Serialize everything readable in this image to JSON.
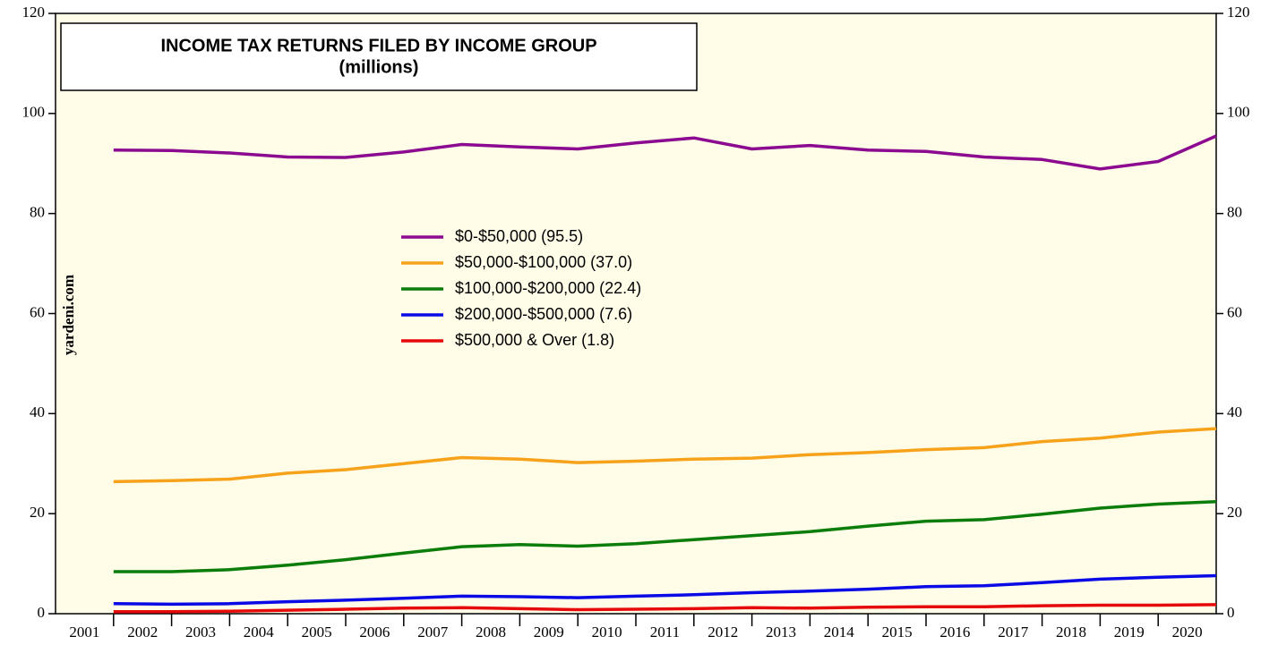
{
  "chart_data": {
    "type": "line",
    "title": "INCOME TAX RETURNS FILED BY INCOME GROUP",
    "subtitle": "(millions)",
    "source": "yardeni.com",
    "categories": [
      "2001",
      "2002",
      "2003",
      "2004",
      "2005",
      "2006",
      "2007",
      "2008",
      "2009",
      "2010",
      "2011",
      "2012",
      "2013",
      "2014",
      "2015",
      "2016",
      "2017",
      "2018",
      "2019",
      "2020"
    ],
    "ylim": [
      0,
      120
    ],
    "yticks": [
      0,
      20,
      40,
      60,
      80,
      100,
      120
    ],
    "series": [
      {
        "name": "$0-$50,000 (95.5)",
        "color": "#8b0a8f",
        "values": [
          92.7,
          92.6,
          92.1,
          91.3,
          91.2,
          92.3,
          93.8,
          93.3,
          92.9,
          94.1,
          95.1,
          92.9,
          93.6,
          92.7,
          92.4,
          91.3,
          90.8,
          88.9,
          90.4,
          95.5
        ]
      },
      {
        "name": "$50,000-$100,000 (37.0)",
        "color": "#f7a21b",
        "values": [
          26.4,
          26.6,
          26.9,
          28.1,
          28.8,
          30.0,
          31.2,
          30.9,
          30.2,
          30.5,
          30.9,
          31.1,
          31.8,
          32.2,
          32.8,
          33.2,
          34.4,
          35.1,
          36.3,
          37.0
        ]
      },
      {
        "name": "$100,000-$200,000 (22.4)",
        "color": "#0a7d0a",
        "values": [
          8.4,
          8.4,
          8.8,
          9.7,
          10.8,
          12.1,
          13.4,
          13.8,
          13.5,
          14.0,
          14.8,
          15.6,
          16.4,
          17.5,
          18.5,
          18.8,
          19.9,
          21.1,
          21.9,
          22.4
        ]
      },
      {
        "name": "$200,000-$500,000 (7.6)",
        "color": "#0a0ae6",
        "values": [
          2.0,
          1.9,
          2.0,
          2.4,
          2.7,
          3.1,
          3.5,
          3.4,
          3.2,
          3.5,
          3.8,
          4.2,
          4.5,
          4.9,
          5.4,
          5.6,
          6.2,
          6.9,
          7.3,
          7.6
        ]
      },
      {
        "name": "$500,000 & Over (1.8)",
        "color": "#e60a0a",
        "values": [
          0.4,
          0.4,
          0.5,
          0.7,
          0.9,
          1.1,
          1.2,
          1.0,
          0.8,
          0.9,
          1.0,
          1.2,
          1.1,
          1.3,
          1.4,
          1.4,
          1.6,
          1.7,
          1.7,
          1.8
        ]
      }
    ]
  }
}
